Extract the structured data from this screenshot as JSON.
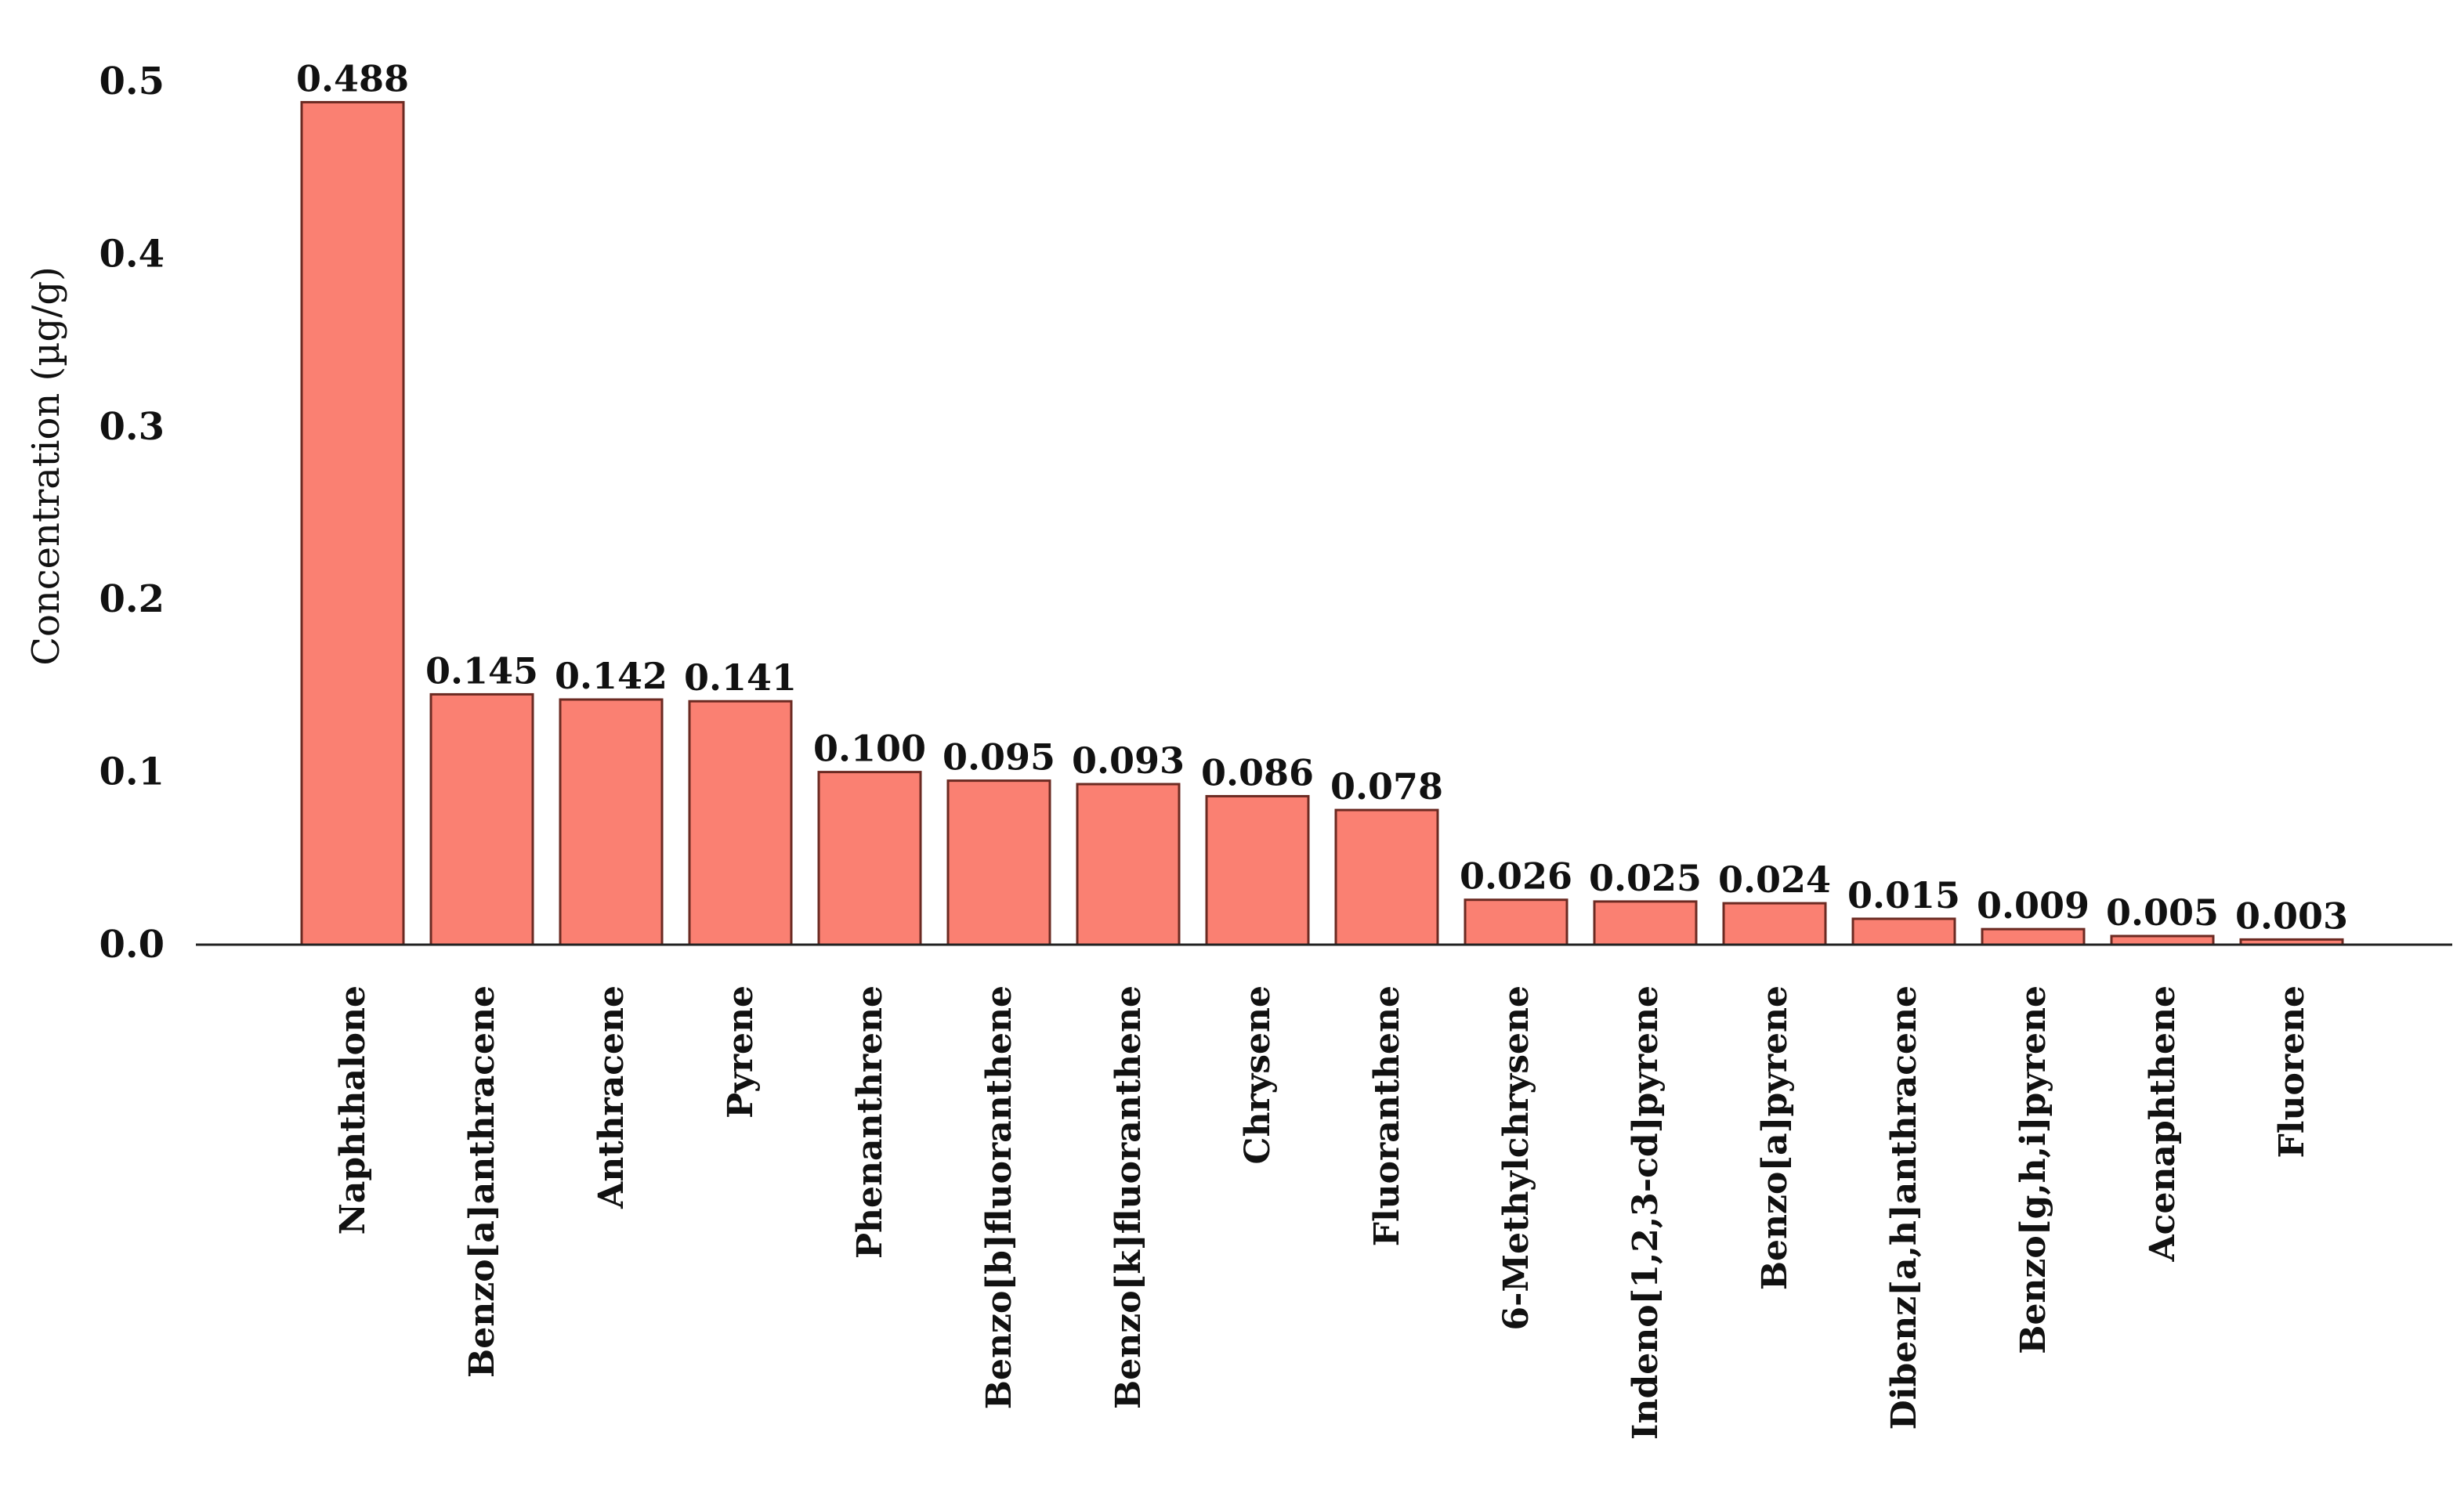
{
  "chart_data": {
    "type": "bar",
    "title": "",
    "xlabel": "",
    "ylabel": "Concentration (µg/g)",
    "ylim": [
      0,
      0.5
    ],
    "yticks": [
      "0.0",
      "0.1",
      "0.2",
      "0.3",
      "0.4",
      "0.5"
    ],
    "grid": false,
    "legend": "none",
    "bar_color": "#fa8072",
    "categories": [
      "Naphthalone",
      "Benzo[a]anthracene",
      "Anthracene",
      "Pyrene",
      "Phenanthrene",
      "Benzo[b]fluoranthene",
      "Benzo[k]fluoranthene",
      "Chrysene",
      "Fluoranthene",
      "6-Methylchrysene",
      "Indeno[1,2,3-cd]pyrene",
      "Benzo[a]pyrene",
      "Dibenz[a,h]anthracene",
      "Benzo[g,h,i]pyrene",
      "Acenaphthene",
      "Fluorene"
    ],
    "values": [
      0.488,
      0.145,
      0.142,
      0.141,
      0.1,
      0.095,
      0.093,
      0.086,
      0.078,
      0.026,
      0.025,
      0.024,
      0.015,
      0.009,
      0.005,
      0.003
    ],
    "value_labels": [
      "0.488",
      "0.145",
      "0.142",
      "0.141",
      "0.100",
      "0.095",
      "0.093",
      "0.086",
      "0.078",
      "0.026",
      "0.025",
      "0.024",
      "0.015",
      "0.009",
      "0.005",
      "0.003"
    ]
  }
}
